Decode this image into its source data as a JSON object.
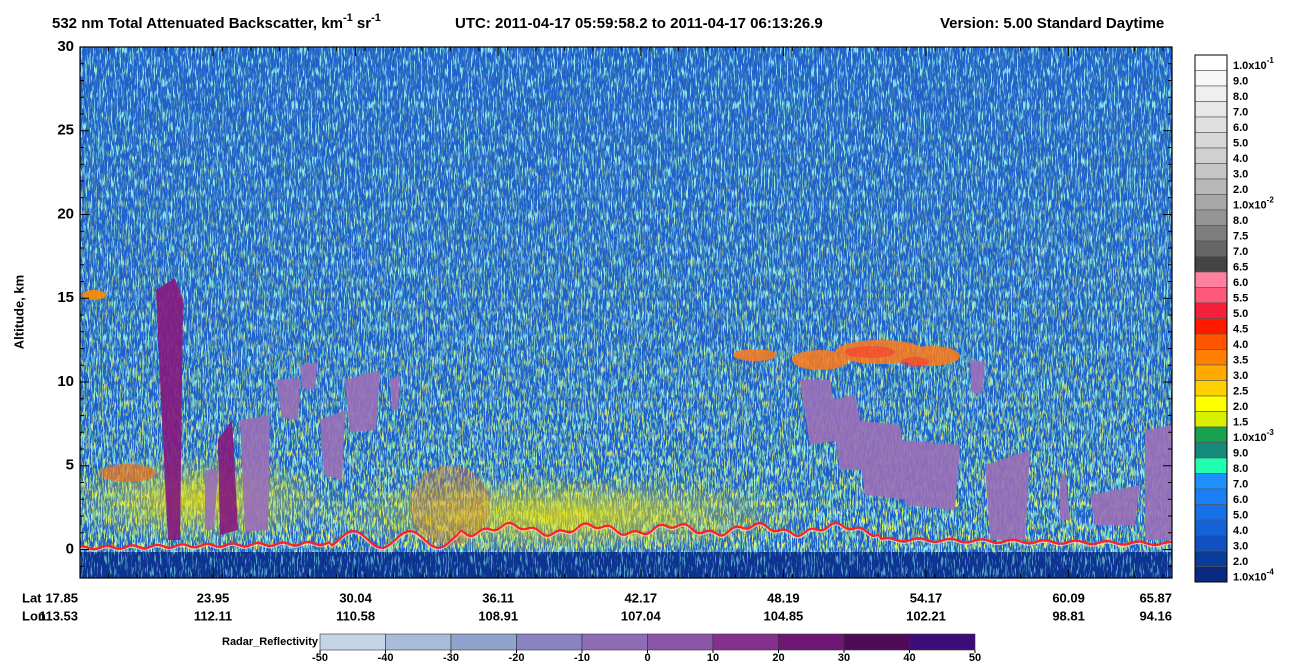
{
  "chart_data": {
    "type": "curtain",
    "title": {
      "text1": "532 nm Total Attenuated Backscatter, km",
      "sup1": "-1",
      "text2": " sr",
      "sup2": "-1"
    },
    "utc": "UTC:  2011-04-17 05:59:58.2  to  2011-04-17 06:13:26.9",
    "version": "Version: 5.00  Standard  Daytime",
    "ylabel": "Altitude, km",
    "ylim": [
      -1.7,
      30
    ],
    "yticks": [
      0,
      5,
      10,
      15,
      20,
      25,
      30
    ],
    "x_rows": [
      {
        "label": "Lat",
        "values": [
          17.85,
          23.95,
          30.04,
          36.11,
          42.17,
          48.19,
          54.17,
          60.09,
          65.87
        ]
      },
      {
        "label": "Lon",
        "values": [
          113.53,
          112.11,
          110.58,
          108.91,
          107.04,
          104.85,
          102.21,
          98.81,
          94.16
        ]
      }
    ],
    "colorbar": [
      {
        "label": "1.0x10",
        "sup": "-1",
        "color": "#ffffff"
      },
      {
        "label": "9.0",
        "color": "#f7f7f7"
      },
      {
        "label": "8.0",
        "color": "#efefef"
      },
      {
        "label": "7.0",
        "color": "#e8e8e8"
      },
      {
        "label": "6.0",
        "color": "#e0e0e0"
      },
      {
        "label": "5.0",
        "color": "#d8d8d8"
      },
      {
        "label": "4.0",
        "color": "#d0d0d0"
      },
      {
        "label": "3.0",
        "color": "#c6c6c6"
      },
      {
        "label": "2.0",
        "color": "#b8b8b8"
      },
      {
        "label": "1.0x10",
        "sup": "-2",
        "color": "#a8a8a8"
      },
      {
        "label": "8.0",
        "color": "#959595"
      },
      {
        "label": "7.5",
        "color": "#7e7e7e"
      },
      {
        "label": "7.0",
        "color": "#666666"
      },
      {
        "label": "6.5",
        "color": "#444444"
      },
      {
        "label": "6.0",
        "color": "#ff7fa0"
      },
      {
        "label": "5.5",
        "color": "#ff5878"
      },
      {
        "label": "5.0",
        "color": "#f4203c"
      },
      {
        "label": "4.5",
        "color": "#ff1a00"
      },
      {
        "label": "4.0",
        "color": "#ff5500"
      },
      {
        "label": "3.5",
        "color": "#ff8000"
      },
      {
        "label": "3.0",
        "color": "#ffaa00"
      },
      {
        "label": "2.5",
        "color": "#ffd000"
      },
      {
        "label": "2.0",
        "color": "#ffff00"
      },
      {
        "label": "1.5",
        "color": "#d8f000"
      },
      {
        "label": "1.0x10",
        "sup": "-3",
        "color": "#16a050"
      },
      {
        "label": "9.0",
        "color": "#138a7a"
      },
      {
        "label": "8.0",
        "color": "#20ffb0"
      },
      {
        "label": "7.0",
        "color": "#1e90ff"
      },
      {
        "label": "6.0",
        "color": "#1a7ff5"
      },
      {
        "label": "5.0",
        "color": "#1670e8"
      },
      {
        "label": "4.0",
        "color": "#1462d8"
      },
      {
        "label": "3.0",
        "color": "#1050c0"
      },
      {
        "label": "2.0",
        "color": "#0a3c9a"
      },
      {
        "label": "1.0x10",
        "sup": "-4",
        "color": "#082a80"
      }
    ],
    "radar": {
      "title": "Radar_Reflectivity",
      "ticks": [
        -50,
        -40,
        -30,
        -20,
        -10,
        0,
        10,
        20,
        30,
        40,
        50
      ],
      "colors": [
        "#c6d4e6",
        "#a8bcd9",
        "#8fa3cc",
        "#8a83c2",
        "#8e6db6",
        "#8c55a8",
        "#85308f",
        "#6e1775",
        "#4f0a55",
        "#3c0d78"
      ]
    }
  }
}
